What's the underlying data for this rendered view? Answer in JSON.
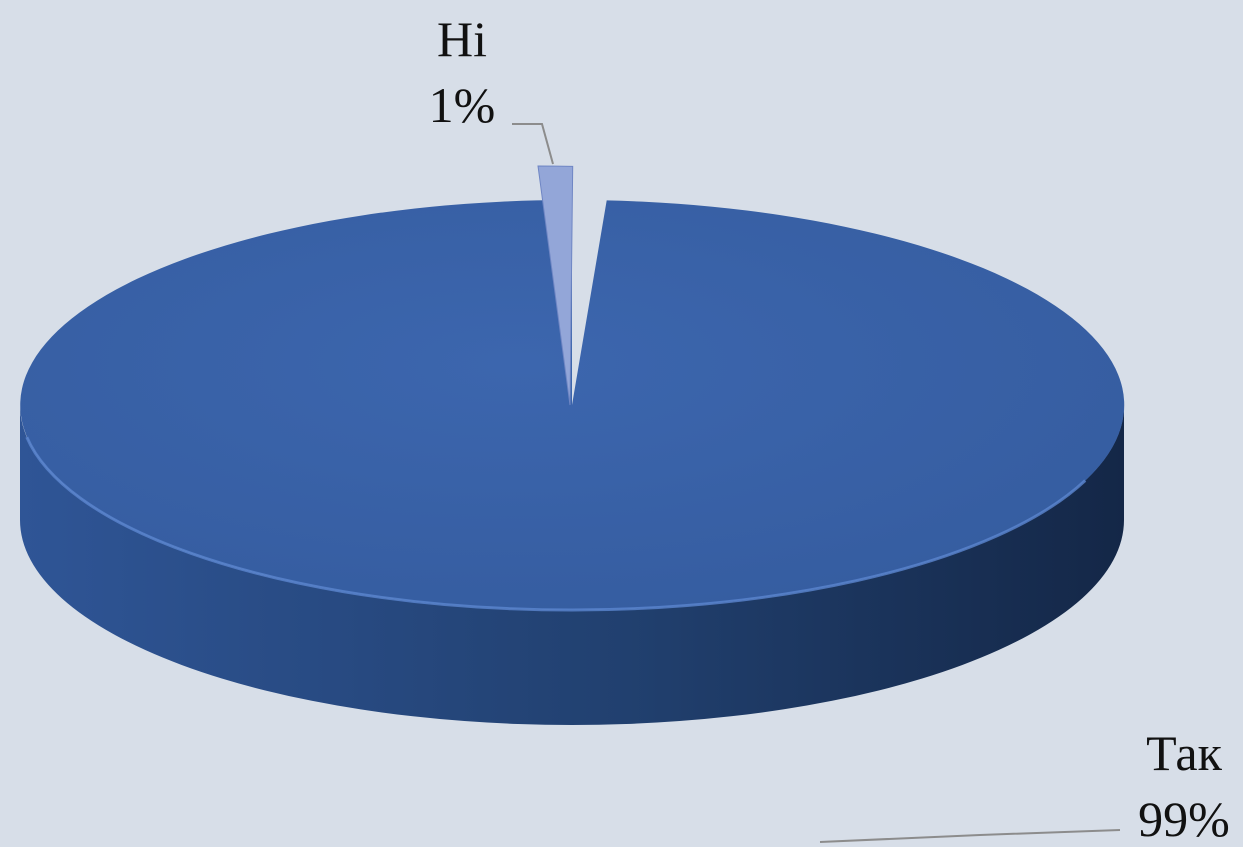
{
  "chart_data": {
    "type": "pie",
    "style": "3d",
    "title": "",
    "categories": [
      "Так",
      "Ні"
    ],
    "values": [
      99,
      1
    ],
    "labels": [
      {
        "category": "Так",
        "value": "99%"
      },
      {
        "category": "Ні",
        "value": "1%"
      }
    ],
    "exploded": [
      "Ні"
    ],
    "legend": "none",
    "colors": {
      "background": "#d7dee8",
      "main_top": "#3a63ab",
      "main_side_light": "#2f5596",
      "main_side_dark": "#142747",
      "slice_small": "#93a6d8",
      "leader_line": "#8c8c8c"
    }
  }
}
